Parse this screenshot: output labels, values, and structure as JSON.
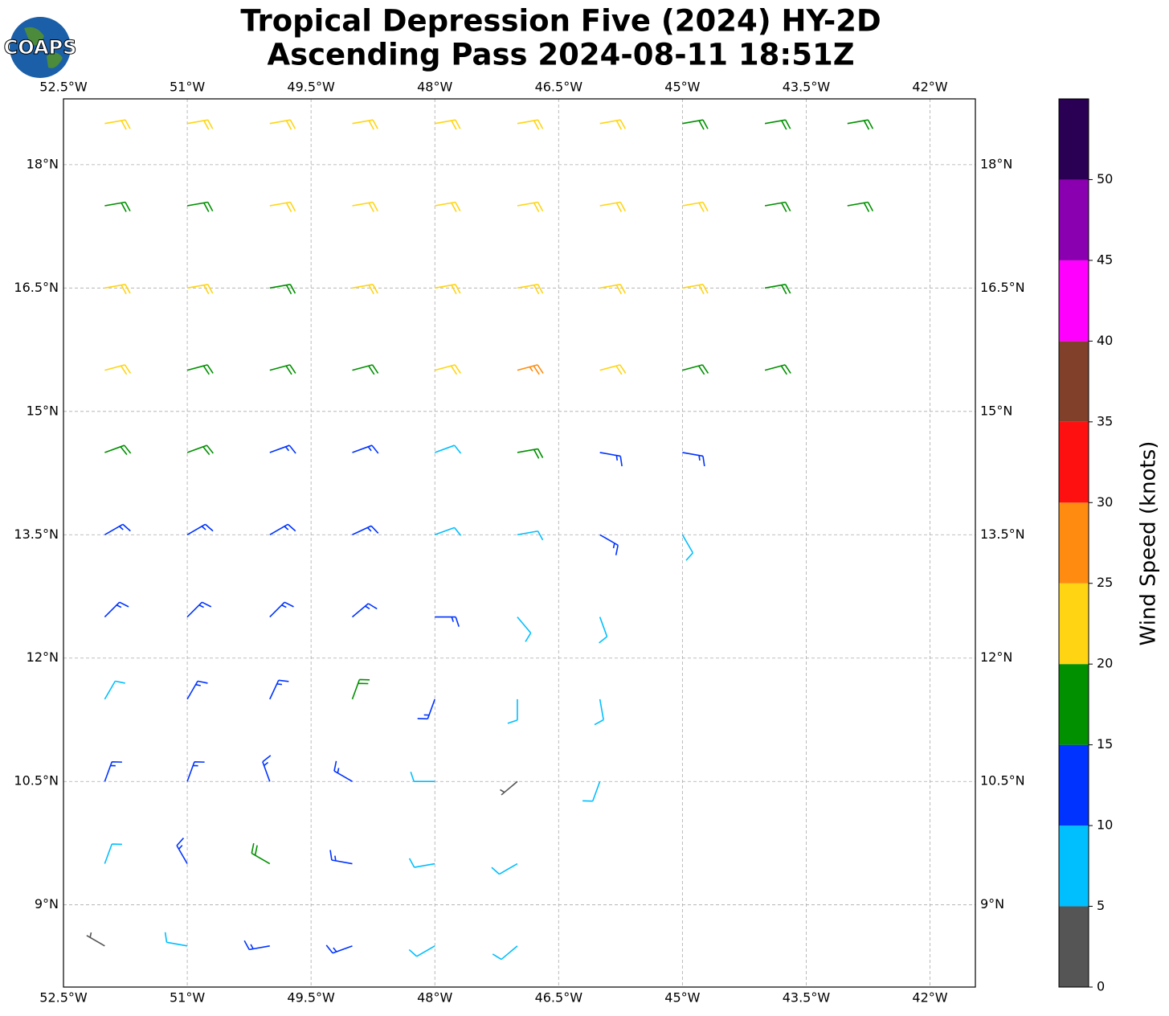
{
  "chart_data": {
    "type": "barbs",
    "title": "Tropical Depression Five (2024) HY-2D",
    "subtitle": "Ascending Pass 2024-08-11 18:51Z",
    "logo": "COAPS",
    "xlim": [
      -52.5,
      -41.45
    ],
    "ylim": [
      8.0,
      18.8
    ],
    "grid": true,
    "xticks": [
      {
        "value": -52.5,
        "label": "52.5°W"
      },
      {
        "value": -51,
        "label": "51°W"
      },
      {
        "value": -49.5,
        "label": "49.5°W"
      },
      {
        "value": -48,
        "label": "48°W"
      },
      {
        "value": -46.5,
        "label": "46.5°W"
      },
      {
        "value": -45,
        "label": "45°W"
      },
      {
        "value": -43.5,
        "label": "43.5°W"
      },
      {
        "value": -42,
        "label": "42°W"
      }
    ],
    "yticks": [
      {
        "value": 9,
        "label": "9°N"
      },
      {
        "value": 10.5,
        "label": "10.5°N"
      },
      {
        "value": 12,
        "label": "12°N"
      },
      {
        "value": 13.5,
        "label": "13.5°N"
      },
      {
        "value": 15,
        "label": "15°N"
      },
      {
        "value": 16.5,
        "label": "16.5°N"
      },
      {
        "value": 18,
        "label": "18°N"
      }
    ],
    "colorbar": {
      "label": "Wind Speed (knots)",
      "clim": [
        0,
        55
      ],
      "bounds": [
        0,
        5,
        10,
        15,
        20,
        25,
        30,
        35,
        40,
        45,
        50,
        55
      ],
      "colors": [
        "#555555",
        "#00bfff",
        "#0033ff",
        "#009000",
        "#ffd513",
        "#ff8c10",
        "#ff1010",
        "#80402a",
        "#ff00ff",
        "#8a00b0",
        "#2a0055"
      ],
      "ticks": [
        0,
        5,
        10,
        15,
        20,
        25,
        30,
        35,
        40,
        45,
        50
      ]
    },
    "barbs": {
      "lon": [
        -52,
        -51,
        -50,
        -49,
        -48,
        -47,
        -46,
        -45,
        -44,
        -43,
        -52,
        -51,
        -50,
        -49,
        -48,
        -47,
        -46,
        -45,
        -44,
        -43,
        -52,
        -51,
        -50,
        -49,
        -48,
        -47,
        -46,
        -45,
        -44,
        -52,
        -51,
        -50,
        -49,
        -48,
        -47,
        -46,
        -45,
        -44,
        -52,
        -51,
        -50,
        -49,
        -48,
        -47,
        -46,
        -45,
        -52,
        -51,
        -50,
        -49,
        -48,
        -47,
        -46,
        -45,
        -52,
        -51,
        -50,
        -49,
        -48,
        -47,
        -46,
        -52,
        -51,
        -50,
        -49,
        -48,
        -47,
        -46,
        -52,
        -51,
        -50,
        -49,
        -48,
        -47,
        -46,
        -52,
        -51,
        -50,
        -49,
        -48,
        -47,
        -52,
        -51,
        -50,
        -49,
        -48,
        -47
      ],
      "lat": [
        18.5,
        18.5,
        18.5,
        18.5,
        18.5,
        18.5,
        18.5,
        18.5,
        18.5,
        18.5,
        17.5,
        17.5,
        17.5,
        17.5,
        17.5,
        17.5,
        17.5,
        17.5,
        17.5,
        17.5,
        16.5,
        16.5,
        16.5,
        16.5,
        16.5,
        16.5,
        16.5,
        16.5,
        16.5,
        15.5,
        15.5,
        15.5,
        15.5,
        15.5,
        15.5,
        15.5,
        15.5,
        15.5,
        14.5,
        14.5,
        14.5,
        14.5,
        14.5,
        14.5,
        14.5,
        14.5,
        13.5,
        13.5,
        13.5,
        13.5,
        13.5,
        13.5,
        13.5,
        13.5,
        12.5,
        12.5,
        12.5,
        12.5,
        12.5,
        12.5,
        12.5,
        11.5,
        11.5,
        11.5,
        11.5,
        11.5,
        11.5,
        11.5,
        10.5,
        10.5,
        10.5,
        10.5,
        10.5,
        10.5,
        10.5,
        9.5,
        9.5,
        9.5,
        9.5,
        9.5,
        9.5,
        8.5,
        8.5,
        8.5,
        8.5,
        8.5,
        8.5
      ],
      "speed": [
        22,
        22,
        22,
        22,
        22,
        22,
        22,
        18,
        18,
        18,
        18,
        18,
        22,
        22,
        22,
        22,
        22,
        22,
        18,
        18,
        22,
        22,
        18,
        22,
        22,
        22,
        22,
        22,
        18,
        22,
        18,
        18,
        18,
        22,
        27,
        22,
        18,
        18,
        18,
        18,
        13,
        13,
        8,
        18,
        13,
        13,
        13,
        13,
        13,
        13,
        8,
        8,
        13,
        8,
        13,
        13,
        13,
        13,
        13,
        8,
        8,
        8,
        13,
        13,
        18,
        13,
        8,
        8,
        13,
        13,
        13,
        13,
        8,
        4,
        8,
        8,
        13,
        18,
        13,
        8,
        8,
        4,
        8,
        13,
        13,
        8,
        8
      ],
      "direction": [
        80,
        80,
        80,
        80,
        80,
        80,
        80,
        80,
        80,
        80,
        80,
        80,
        80,
        80,
        80,
        80,
        80,
        80,
        80,
        80,
        80,
        80,
        80,
        80,
        80,
        80,
        80,
        80,
        80,
        75,
        75,
        75,
        75,
        75,
        75,
        75,
        75,
        75,
        70,
        70,
        70,
        70,
        70,
        80,
        100,
        100,
        60,
        60,
        60,
        65,
        70,
        80,
        120,
        150,
        45,
        45,
        45,
        50,
        90,
        140,
        160,
        30,
        30,
        25,
        20,
        200,
        180,
        170,
        20,
        20,
        340,
        300,
        270,
        230,
        200,
        20,
        330,
        300,
        280,
        260,
        240,
        300,
        280,
        260,
        250,
        240,
        230
      ]
    }
  }
}
